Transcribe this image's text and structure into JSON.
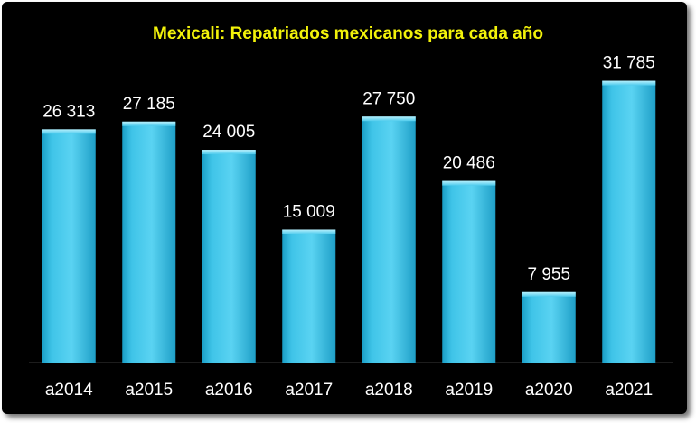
{
  "chart_data": {
    "type": "bar",
    "title": "Mexicali: Repatriados mexicanos para cada año",
    "categories": [
      "a2014",
      "a2015",
      "a2016",
      "a2017",
      "a2018",
      "a2019",
      "a2020",
      "a2021"
    ],
    "values": [
      26313,
      27185,
      24005,
      15009,
      27750,
      20486,
      7955,
      31785
    ],
    "value_labels": [
      "26 313",
      "27 185",
      "24 005",
      "15 009",
      "27 750",
      "20 486",
      "7 955",
      "31 785"
    ],
    "xlabel": "",
    "ylabel": "",
    "ylim": [
      0,
      35000
    ],
    "grid": false,
    "legend": "none"
  },
  "colors": {
    "background": "#000000",
    "bar": "#3fc4e8",
    "bar_highlight": "#8fe2f7",
    "title": "#f2f20a",
    "text": "#ffffff"
  }
}
